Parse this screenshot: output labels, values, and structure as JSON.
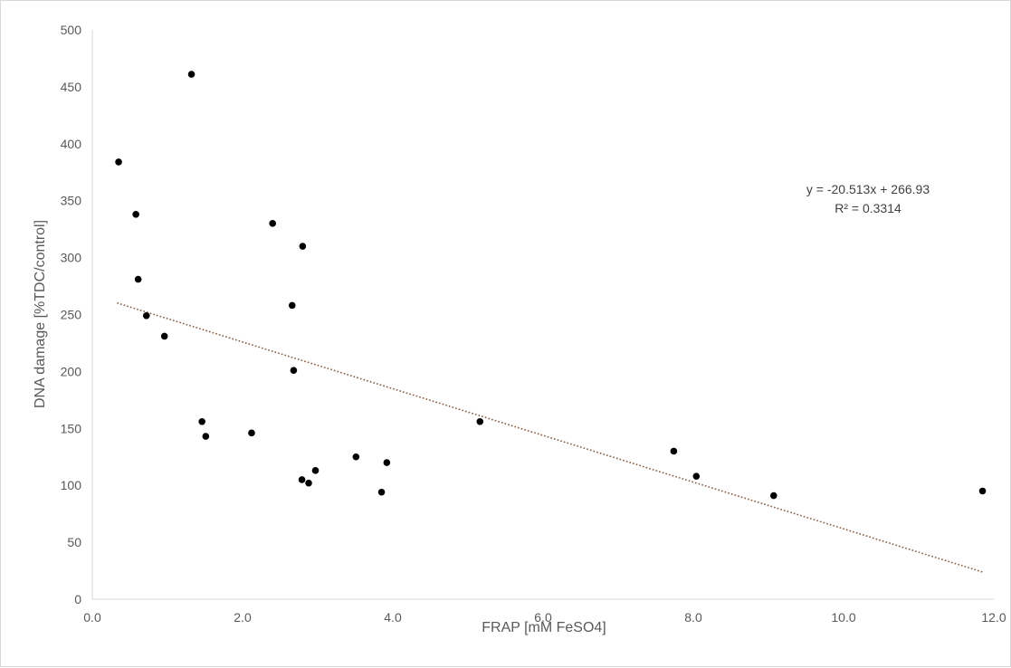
{
  "chart_data": {
    "type": "scatter",
    "title": "",
    "xlabel": "FRAP [mM FeSO4]",
    "ylabel": "DNA damage [%TDC/control]",
    "xlim": [
      0,
      12
    ],
    "ylim": [
      0,
      500
    ],
    "x_ticks": [
      0,
      2,
      4,
      6,
      8,
      10,
      12
    ],
    "x_tick_labels": [
      "0.0",
      "2.0",
      "4.0",
      "6.0",
      "8.0",
      "10.0",
      "12.0"
    ],
    "y_ticks": [
      0,
      50,
      100,
      150,
      200,
      250,
      300,
      350,
      400,
      450,
      500
    ],
    "y_tick_labels": [
      "0",
      "50",
      "100",
      "150",
      "200",
      "250",
      "300",
      "350",
      "400",
      "450",
      "500"
    ],
    "grid": false,
    "legend": "none",
    "colors": {
      "points": "#000000",
      "trendline": "#8b5a3c",
      "axis": "#d9d9d9",
      "text": "#595959"
    },
    "points": [
      {
        "x": 0.35,
        "y": 384
      },
      {
        "x": 1.32,
        "y": 461
      },
      {
        "x": 0.58,
        "y": 338
      },
      {
        "x": 0.61,
        "y": 281
      },
      {
        "x": 0.72,
        "y": 249
      },
      {
        "x": 0.96,
        "y": 231
      },
      {
        "x": 1.46,
        "y": 156
      },
      {
        "x": 1.51,
        "y": 143
      },
      {
        "x": 2.12,
        "y": 146
      },
      {
        "x": 2.4,
        "y": 330
      },
      {
        "x": 2.66,
        "y": 258
      },
      {
        "x": 2.68,
        "y": 201
      },
      {
        "x": 2.8,
        "y": 310
      },
      {
        "x": 2.79,
        "y": 105
      },
      {
        "x": 2.88,
        "y": 102
      },
      {
        "x": 2.97,
        "y": 113
      },
      {
        "x": 3.51,
        "y": 125
      },
      {
        "x": 3.85,
        "y": 94
      },
      {
        "x": 3.92,
        "y": 120
      },
      {
        "x": 5.16,
        "y": 156
      },
      {
        "x": 7.74,
        "y": 130
      },
      {
        "x": 8.04,
        "y": 108
      },
      {
        "x": 9.07,
        "y": 91
      },
      {
        "x": 11.85,
        "y": 95
      }
    ],
    "trendline": {
      "type": "linear",
      "style": "dotted",
      "slope": -20.513,
      "intercept": 266.93,
      "x_start": 0.33,
      "x_end": 11.85,
      "equation_label": "y = -20.513x + 266.93",
      "r2_label": "R² = 0.3314"
    }
  }
}
